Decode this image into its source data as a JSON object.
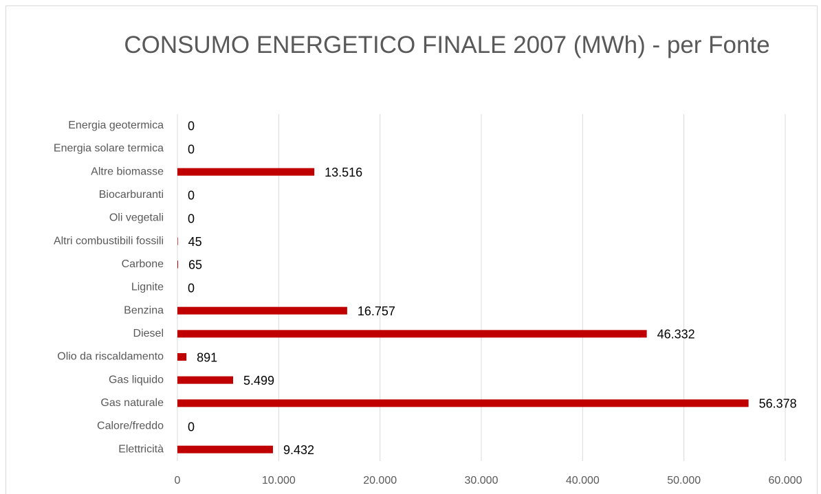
{
  "chart_data": {
    "type": "bar",
    "orientation": "horizontal",
    "title": "CONSUMO ENERGETICO FINALE 2007  (MWh) - per Fonte",
    "categories": [
      "Energia geotermica",
      "Energia solare termica",
      "Altre biomasse",
      "Biocarburanti",
      "Oli vegetali",
      "Altri combustibili fossili",
      "Carbone",
      "Lignite",
      "Benzina",
      "Diesel",
      "Olio da riscaldamento",
      "Gas liquido",
      "Gas naturale",
      "Calore/freddo",
      "Elettricità"
    ],
    "values": [
      0,
      0,
      13516,
      0,
      0,
      45,
      65,
      0,
      16757,
      46332,
      891,
      5499,
      56378,
      0,
      9432
    ],
    "value_labels": [
      "0",
      "0",
      "13.516",
      "0",
      "0",
      "45",
      "65",
      "0",
      "16.757",
      "46.332",
      "891",
      "5.499",
      "56.378",
      "0",
      "9.432"
    ],
    "color": "#c00000",
    "xlim": [
      0,
      60000
    ],
    "xticks": [
      0,
      {
        "value": 10000,
        "label": "10.000"
      },
      {
        "value": 20000,
        "label": "20.000"
      },
      {
        "value": 30000,
        "label": "30.000"
      },
      {
        "value": 40000,
        "label": "40.000"
      },
      {
        "value": 50000,
        "label": "50.000"
      },
      {
        "value": 60000,
        "label": "60.000"
      }
    ],
    "grid": true
  }
}
